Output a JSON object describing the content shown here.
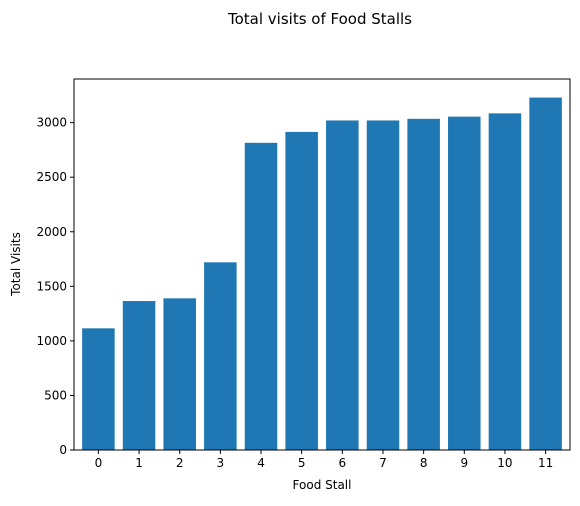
{
  "chart_data": {
    "type": "bar",
    "title": "Total visits of Food Stalls",
    "xlabel": "Food Stall",
    "ylabel": "Total Visits",
    "categories": [
      "0",
      "1",
      "2",
      "3",
      "4",
      "5",
      "6",
      "7",
      "8",
      "9",
      "10",
      "11"
    ],
    "values": [
      1115,
      1365,
      1390,
      1720,
      2815,
      2915,
      3020,
      3020,
      3035,
      3055,
      3085,
      3230
    ],
    "ylim": [
      0,
      3400
    ],
    "yticks": [
      0,
      500,
      1000,
      1500,
      2000,
      2500,
      3000
    ],
    "grid": false,
    "bar_color": "#1f77b4"
  }
}
